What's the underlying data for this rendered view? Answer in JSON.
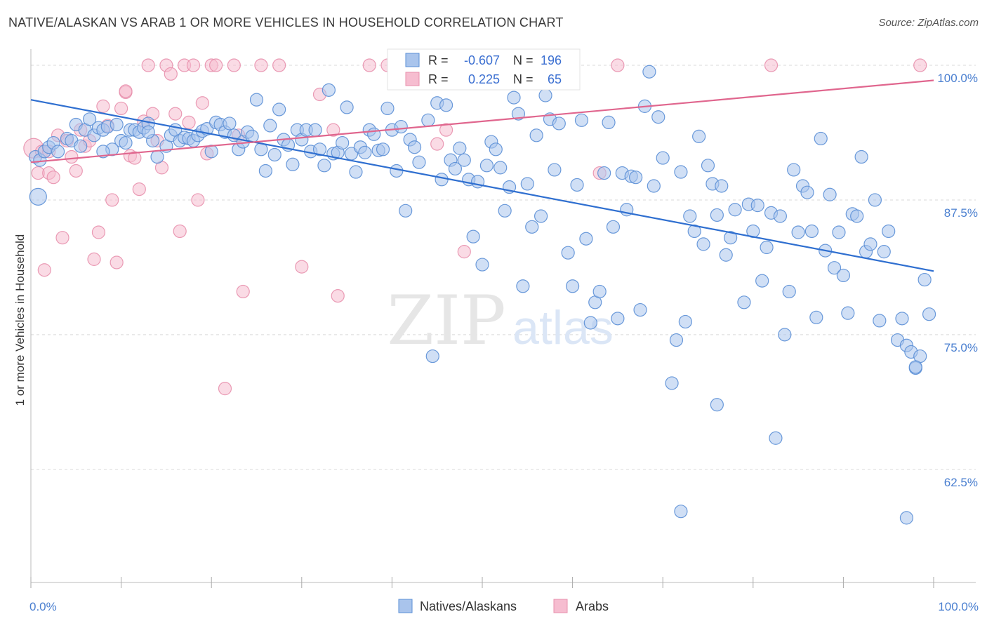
{
  "title": "NATIVE/ALASKAN VS ARAB 1 OR MORE VEHICLES IN HOUSEHOLD CORRELATION CHART",
  "source": "Source: ZipAtlas.com",
  "watermark": {
    "zip": "ZIP",
    "atlas": "atlas"
  },
  "colors": {
    "blue_fill": "#a9c4ec",
    "blue_stroke": "#5b8fd6",
    "blue_line": "#2f6fd0",
    "pink_fill": "#f6bdd0",
    "pink_stroke": "#e890ad",
    "pink_line": "#e0668e",
    "tick_text": "#4a7fd0",
    "grid": "#d9d9d9"
  },
  "chart_data": {
    "type": "scatter",
    "xlabel": "",
    "ylabel": "1 or more Vehicles in Household",
    "xlim": [
      0,
      100
    ],
    "ylim": [
      52,
      101.5
    ],
    "x_tick_labels": [
      "0.0%",
      "100.0%"
    ],
    "y_ticks": [
      {
        "value": 100,
        "label": "100.0%"
      },
      {
        "value": 87.5,
        "label": "87.5%"
      },
      {
        "value": 75,
        "label": "75.0%"
      },
      {
        "value": 62.5,
        "label": "62.5%"
      }
    ],
    "legend": [
      {
        "name": "Natives/Alaskans",
        "r_label": "R =",
        "r": "-0.607",
        "n_label": "N =",
        "n": "196"
      },
      {
        "name": "Arabs",
        "r_label": "R =",
        "r": "0.225",
        "n_label": "N =",
        "n": "65"
      }
    ],
    "series": [
      {
        "name": "Natives/Alaskans",
        "trend": {
          "x": [
            0,
            100
          ],
          "y": [
            96.8,
            80.9
          ]
        },
        "points": [
          [
            0.5,
            91.5
          ],
          [
            0.8,
            87.8
          ],
          [
            1.0,
            91.2
          ],
          [
            1.5,
            92.0
          ],
          [
            2.0,
            92.4
          ],
          [
            2.5,
            92.8
          ],
          [
            3.0,
            92.0
          ],
          [
            4.0,
            93.2
          ],
          [
            4.5,
            93.0
          ],
          [
            5.0,
            94.5
          ],
          [
            5.5,
            92.5
          ],
          [
            6.0,
            94.0
          ],
          [
            6.5,
            95.0
          ],
          [
            7.0,
            93.5
          ],
          [
            7.5,
            94.2
          ],
          [
            8.0,
            94.0
          ],
          [
            8.5,
            94.3
          ],
          [
            9.0,
            92.2
          ],
          [
            9.5,
            94.5
          ],
          [
            10.0,
            93.0
          ],
          [
            10.5,
            92.8
          ],
          [
            11.0,
            94.0
          ],
          [
            11.5,
            94.0
          ],
          [
            12.0,
            93.8
          ],
          [
            12.5,
            94.2
          ],
          [
            13.0,
            94.6
          ],
          [
            13.5,
            93.0
          ],
          [
            14.0,
            91.5
          ],
          [
            15.0,
            92.5
          ],
          [
            15.5,
            93.5
          ],
          [
            16.0,
            94.0
          ],
          [
            16.5,
            93.0
          ],
          [
            17.0,
            93.3
          ],
          [
            17.5,
            93.2
          ],
          [
            18.0,
            93.0
          ],
          [
            18.5,
            93.5
          ],
          [
            19.0,
            93.9
          ],
          [
            19.5,
            94.1
          ],
          [
            20.0,
            92.0
          ],
          [
            20.5,
            94.7
          ],
          [
            21.0,
            94.5
          ],
          [
            21.5,
            93.8
          ],
          [
            22.0,
            94.6
          ],
          [
            22.5,
            93.5
          ],
          [
            23.0,
            92.2
          ],
          [
            23.5,
            92.9
          ],
          [
            24.0,
            93.8
          ],
          [
            24.5,
            93.4
          ],
          [
            25.0,
            96.8
          ],
          [
            25.5,
            92.2
          ],
          [
            26.0,
            90.2
          ],
          [
            26.5,
            94.4
          ],
          [
            27.0,
            91.7
          ],
          [
            27.5,
            95.9
          ],
          [
            28.0,
            93.1
          ],
          [
            28.5,
            92.6
          ],
          [
            29.0,
            90.8
          ],
          [
            29.5,
            94.0
          ],
          [
            30.0,
            93.1
          ],
          [
            30.5,
            94.0
          ],
          [
            31.0,
            92.0
          ],
          [
            31.5,
            94.0
          ],
          [
            32.0,
            92.2
          ],
          [
            32.5,
            90.7
          ],
          [
            33.0,
            97.7
          ],
          [
            33.5,
            91.8
          ],
          [
            34.0,
            91.9
          ],
          [
            34.5,
            92.8
          ],
          [
            35.0,
            96.1
          ],
          [
            35.5,
            91.8
          ],
          [
            36.0,
            90.1
          ],
          [
            36.5,
            92.4
          ],
          [
            37.0,
            91.9
          ],
          [
            37.5,
            94.0
          ],
          [
            38.0,
            93.6
          ],
          [
            38.5,
            92.1
          ],
          [
            39.0,
            92.2
          ],
          [
            39.5,
            96.0
          ],
          [
            40.0,
            94.0
          ],
          [
            40.5,
            90.2
          ],
          [
            41.0,
            94.3
          ],
          [
            41.5,
            86.5
          ],
          [
            42.0,
            93.1
          ],
          [
            42.5,
            92.4
          ],
          [
            43.0,
            91.0
          ],
          [
            44.0,
            94.9
          ],
          [
            45.0,
            96.5
          ],
          [
            45.5,
            89.4
          ],
          [
            46.0,
            96.3
          ],
          [
            46.5,
            91.2
          ],
          [
            47.0,
            90.4
          ],
          [
            47.5,
            92.3
          ],
          [
            48.0,
            91.2
          ],
          [
            48.5,
            89.4
          ],
          [
            49.0,
            84.1
          ],
          [
            49.5,
            89.2
          ],
          [
            50.0,
            81.5
          ],
          [
            50.5,
            90.7
          ],
          [
            51.0,
            92.9
          ],
          [
            51.5,
            92.2
          ],
          [
            52.0,
            90.5
          ],
          [
            52.5,
            86.5
          ],
          [
            53.0,
            88.7
          ],
          [
            53.5,
            97.0
          ],
          [
            54.0,
            95.5
          ],
          [
            54.5,
            79.5
          ],
          [
            55.0,
            89.0
          ],
          [
            55.5,
            85.0
          ],
          [
            56.0,
            93.5
          ],
          [
            56.5,
            86.0
          ],
          [
            57.0,
            97.2
          ],
          [
            57.5,
            95.0
          ],
          [
            58.0,
            90.3
          ],
          [
            58.5,
            94.6
          ],
          [
            59.0,
            99.2
          ],
          [
            59.5,
            82.6
          ],
          [
            60.0,
            79.5
          ],
          [
            60.5,
            88.9
          ],
          [
            61.0,
            94.9
          ],
          [
            61.5,
            83.9
          ],
          [
            62.0,
            76.1
          ],
          [
            62.5,
            78.0
          ],
          [
            63.0,
            79.0
          ],
          [
            63.5,
            90.0
          ],
          [
            64.0,
            94.7
          ],
          [
            64.5,
            85.0
          ],
          [
            65.0,
            76.5
          ],
          [
            65.5,
            90.0
          ],
          [
            66.0,
            86.6
          ],
          [
            66.5,
            89.7
          ],
          [
            67.0,
            89.6
          ],
          [
            67.5,
            77.3
          ],
          [
            68.0,
            96.2
          ],
          [
            68.5,
            99.4
          ],
          [
            69.0,
            88.8
          ],
          [
            69.5,
            95.2
          ],
          [
            70.0,
            91.4
          ],
          [
            71.0,
            70.5
          ],
          [
            71.5,
            74.5
          ],
          [
            72.0,
            90.1
          ],
          [
            72.5,
            76.2
          ],
          [
            73.0,
            86.0
          ],
          [
            73.5,
            84.6
          ],
          [
            74.0,
            93.4
          ],
          [
            74.5,
            83.4
          ],
          [
            75.0,
            90.7
          ],
          [
            75.5,
            89.0
          ],
          [
            76.0,
            86.1
          ],
          [
            76.5,
            88.8
          ],
          [
            77.0,
            82.4
          ],
          [
            77.5,
            84.0
          ],
          [
            78.0,
            86.6
          ],
          [
            79.0,
            78.0
          ],
          [
            79.5,
            87.1
          ],
          [
            80.0,
            84.6
          ],
          [
            80.5,
            87.0
          ],
          [
            81.0,
            80.0
          ],
          [
            81.5,
            83.1
          ],
          [
            82.0,
            86.3
          ],
          [
            82.5,
            65.4
          ],
          [
            83.0,
            86.0
          ],
          [
            83.5,
            75.0
          ],
          [
            84.0,
            79.0
          ],
          [
            84.5,
            90.3
          ],
          [
            85.0,
            84.5
          ],
          [
            85.5,
            88.8
          ],
          [
            86.0,
            88.2
          ],
          [
            86.5,
            84.6
          ],
          [
            87.0,
            76.6
          ],
          [
            87.5,
            93.2
          ],
          [
            88.0,
            82.8
          ],
          [
            88.5,
            88.0
          ],
          [
            89.0,
            81.2
          ],
          [
            89.5,
            84.5
          ],
          [
            90.0,
            80.5
          ],
          [
            90.5,
            77.0
          ],
          [
            91.0,
            86.2
          ],
          [
            91.5,
            86.0
          ],
          [
            92.0,
            91.5
          ],
          [
            92.5,
            82.7
          ],
          [
            93.0,
            83.4
          ],
          [
            93.5,
            87.5
          ],
          [
            94.0,
            76.3
          ],
          [
            94.5,
            82.7
          ],
          [
            95.0,
            84.6
          ],
          [
            96.0,
            74.5
          ],
          [
            96.5,
            76.5
          ],
          [
            97.0,
            74.0
          ],
          [
            97.5,
            73.4
          ],
          [
            98.0,
            71.9
          ],
          [
            98.5,
            73.0
          ],
          [
            99.0,
            80.1
          ],
          [
            99.5,
            76.9
          ],
          [
            72.0,
            58.6
          ],
          [
            97.0,
            58.0
          ],
          [
            8.0,
            92.0
          ],
          [
            13.0,
            93.8
          ],
          [
            44.5,
            73.0
          ],
          [
            76.0,
            68.5
          ],
          [
            98.0,
            72.0
          ]
        ]
      },
      {
        "name": "Arabs",
        "trend": {
          "x": [
            0,
            100
          ],
          "y": [
            91.0,
            98.6
          ]
        },
        "points": [
          [
            0.3,
            92.3
          ],
          [
            0.8,
            90.0
          ],
          [
            1.2,
            92.0
          ],
          [
            1.5,
            81.0
          ],
          [
            2.0,
            90.0
          ],
          [
            2.5,
            89.6
          ],
          [
            3.0,
            93.5
          ],
          [
            3.5,
            84.0
          ],
          [
            4.0,
            93.0
          ],
          [
            4.5,
            91.5
          ],
          [
            5.0,
            90.2
          ],
          [
            5.5,
            94.0
          ],
          [
            6.0,
            92.5
          ],
          [
            6.5,
            93.0
          ],
          [
            7.0,
            82.0
          ],
          [
            7.5,
            84.5
          ],
          [
            8.0,
            96.2
          ],
          [
            8.5,
            94.4
          ],
          [
            9.0,
            87.5
          ],
          [
            9.5,
            81.7
          ],
          [
            10.0,
            96.0
          ],
          [
            10.5,
            97.5
          ],
          [
            11.0,
            91.6
          ],
          [
            11.5,
            91.4
          ],
          [
            12.0,
            88.5
          ],
          [
            12.5,
            94.8
          ],
          [
            13.0,
            100.0
          ],
          [
            13.5,
            95.5
          ],
          [
            14.0,
            93.0
          ],
          [
            14.5,
            90.5
          ],
          [
            15.0,
            100.0
          ],
          [
            15.5,
            99.2
          ],
          [
            16.0,
            95.5
          ],
          [
            16.5,
            84.6
          ],
          [
            17.0,
            100.0
          ],
          [
            17.5,
            94.7
          ],
          [
            18.0,
            100.0
          ],
          [
            18.5,
            87.5
          ],
          [
            19.0,
            96.5
          ],
          [
            19.5,
            91.8
          ],
          [
            20.0,
            100.0
          ],
          [
            20.5,
            100.0
          ],
          [
            21.5,
            70.0
          ],
          [
            22.5,
            100.0
          ],
          [
            23.0,
            93.5
          ],
          [
            23.5,
            79.0
          ],
          [
            25.5,
            100.0
          ],
          [
            27.5,
            100.0
          ],
          [
            30.0,
            81.3
          ],
          [
            32.0,
            97.3
          ],
          [
            33.5,
            94.0
          ],
          [
            34.0,
            78.6
          ],
          [
            37.5,
            100.0
          ],
          [
            39.5,
            100.0
          ],
          [
            47.0,
            100.0
          ],
          [
            48.0,
            82.7
          ],
          [
            42.5,
            100.0
          ],
          [
            45.0,
            92.7
          ],
          [
            46.0,
            94.0
          ],
          [
            63.0,
            90.0
          ],
          [
            65.0,
            100.0
          ],
          [
            82.0,
            100.0
          ],
          [
            98.5,
            100.0
          ],
          [
            2.0,
            92.0
          ],
          [
            10.5,
            97.6
          ]
        ]
      }
    ]
  }
}
